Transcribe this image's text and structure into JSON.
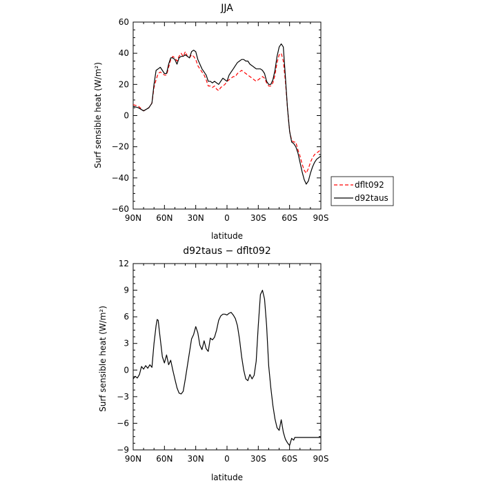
{
  "chart_data": [
    {
      "type": "line",
      "title": "JJA",
      "xlabel": "latitude",
      "ylabel": "Surf sensible heat (W/m²)",
      "ylim": [
        -60,
        60
      ],
      "xlim": [
        -90,
        90
      ],
      "x_tick_values": [
        -90,
        -60,
        -30,
        0,
        30,
        60,
        90
      ],
      "x_tick_labels": [
        "90N",
        "60N",
        "30N",
        "0",
        "30S",
        "60S",
        "90S"
      ],
      "y_tick_values": [
        -60,
        -40,
        -20,
        0,
        20,
        40,
        60
      ],
      "y_tick_labels": [
        "−60",
        "−40",
        "−20",
        "0",
        "20",
        "40",
        "60"
      ],
      "legend_placement": "right",
      "series": [
        {
          "name": "dflt092",
          "color": "#ff0000",
          "dashed": true,
          "x": [
            -90,
            -85,
            -80,
            -75,
            -72,
            -70,
            -68,
            -66,
            -64,
            -62,
            -60,
            -58,
            -56,
            -54,
            -52,
            -50,
            -48,
            -46,
            -44,
            -42,
            -40,
            -38,
            -36,
            -34,
            -32,
            -30,
            -28,
            -26,
            -24,
            -22,
            -20,
            -18,
            -16,
            -14,
            -12,
            -10,
            -8,
            -6,
            -4,
            -2,
            0,
            2,
            4,
            6,
            8,
            10,
            12,
            14,
            16,
            18,
            20,
            22,
            24,
            26,
            28,
            30,
            32,
            34,
            36,
            38,
            40,
            42,
            44,
            46,
            48,
            50,
            52,
            54,
            56,
            58,
            60,
            62,
            64,
            66,
            68,
            70,
            72,
            74,
            76,
            78,
            80,
            82,
            84,
            86,
            88,
            90
          ],
          "values": [
            7,
            6,
            3,
            5,
            8,
            18,
            23,
            27,
            28,
            27,
            26,
            26,
            31,
            36,
            38,
            37,
            35,
            38,
            40,
            38,
            41,
            38,
            37,
            39,
            38,
            36,
            32,
            30,
            28,
            26,
            23,
            19,
            19,
            18,
            19,
            17,
            16,
            18,
            19,
            20,
            22,
            23,
            24,
            25,
            25,
            27,
            28,
            29,
            28,
            27,
            26,
            25,
            24,
            23,
            22,
            23,
            24,
            25,
            24,
            21,
            19,
            19,
            21,
            26,
            34,
            39,
            40,
            35,
            22,
            5,
            -10,
            -16,
            -17,
            -17,
            -22,
            -26,
            -31,
            -35,
            -37,
            -34,
            -30,
            -27,
            -25,
            -24,
            -23,
            -22
          ]
        },
        {
          "name": "d92taus",
          "color": "#000000",
          "dashed": false,
          "x": [
            -90,
            -85,
            -80,
            -75,
            -72,
            -70,
            -68,
            -66,
            -64,
            -62,
            -60,
            -58,
            -56,
            -54,
            -52,
            -50,
            -48,
            -46,
            -44,
            -42,
            -40,
            -38,
            -36,
            -34,
            -32,
            -30,
            -28,
            -26,
            -24,
            -22,
            -20,
            -18,
            -16,
            -14,
            -12,
            -10,
            -8,
            -6,
            -4,
            -2,
            0,
            2,
            4,
            6,
            8,
            10,
            12,
            14,
            16,
            18,
            20,
            22,
            24,
            26,
            28,
            30,
            32,
            34,
            36,
            38,
            40,
            42,
            44,
            46,
            48,
            50,
            52,
            54,
            56,
            58,
            60,
            62,
            64,
            66,
            68,
            70,
            72,
            74,
            76,
            78,
            80,
            82,
            84,
            86,
            88,
            90
          ],
          "values": [
            6,
            5,
            3,
            5,
            8,
            20,
            29,
            30,
            31,
            29,
            27,
            27,
            33,
            37,
            37,
            36,
            33,
            37,
            38,
            38,
            39,
            38,
            37,
            41,
            42,
            41,
            36,
            33,
            30,
            28,
            26,
            22,
            22,
            21,
            22,
            21,
            20,
            22,
            24,
            23,
            22,
            26,
            28,
            30,
            32,
            34,
            35,
            36,
            36,
            35,
            35,
            33,
            32,
            31,
            30,
            30,
            30,
            29,
            27,
            22,
            20,
            20,
            23,
            29,
            38,
            44,
            46,
            44,
            25,
            5,
            -10,
            -17,
            -18,
            -20,
            -24,
            -30,
            -36,
            -41,
            -44,
            -42,
            -37,
            -33,
            -30,
            -28,
            -27,
            -26
          ]
        }
      ]
    },
    {
      "type": "line",
      "title": "d92taus − dflt092",
      "xlabel": "latitude",
      "ylabel": "Surf sensible heat (W/m²)",
      "ylim": [
        -9,
        12
      ],
      "xlim": [
        -90,
        90
      ],
      "x_tick_values": [
        -90,
        -60,
        -30,
        0,
        30,
        60,
        90
      ],
      "x_tick_labels": [
        "90N",
        "60N",
        "30N",
        "0",
        "30S",
        "60S",
        "90S"
      ],
      "y_tick_values": [
        -9,
        -6,
        -3,
        0,
        3,
        6,
        9,
        12
      ],
      "y_tick_labels": [
        "−9",
        "−6",
        "−3",
        "0",
        "3",
        "6",
        "9",
        "12"
      ],
      "series": [
        {
          "name": "",
          "color": "#000000",
          "dashed": false,
          "x": [
            -90,
            -88,
            -86,
            -84,
            -82,
            -80,
            -78,
            -76,
            -74,
            -72,
            -70,
            -69,
            -68,
            -67,
            -66,
            -65,
            -64,
            -62,
            -60,
            -58,
            -56,
            -54,
            -52,
            -50,
            -48,
            -46,
            -44,
            -42,
            -40,
            -38,
            -36,
            -34,
            -32,
            -30,
            -28,
            -26,
            -24,
            -22,
            -20,
            -18,
            -16,
            -14,
            -12,
            -10,
            -8,
            -6,
            -4,
            -2,
            0,
            2,
            4,
            6,
            8,
            10,
            12,
            14,
            16,
            18,
            20,
            22,
            24,
            26,
            28,
            30,
            32,
            34,
            36,
            38,
            40,
            42,
            44,
            46,
            48,
            50,
            52,
            54,
            56,
            58,
            60,
            62,
            64,
            65,
            66,
            67,
            68,
            70,
            72,
            74,
            76,
            78,
            80,
            82,
            84,
            86,
            88,
            90
          ],
          "values": [
            -1.0,
            -0.7,
            -0.9,
            -0.5,
            0.4,
            0.1,
            0.5,
            0.2,
            0.6,
            0.3,
            3.0,
            4.0,
            5.0,
            5.7,
            5.6,
            4.5,
            3.5,
            1.5,
            0.8,
            1.7,
            0.6,
            1.1,
            0.0,
            -1.0,
            -2.0,
            -2.6,
            -2.7,
            -2.4,
            -1.0,
            0.5,
            2.0,
            3.5,
            4.0,
            4.9,
            4.2,
            2.8,
            2.3,
            3.3,
            2.4,
            2.1,
            3.6,
            3.4,
            3.7,
            4.5,
            5.6,
            6.1,
            6.3,
            6.3,
            6.2,
            6.4,
            6.5,
            6.2,
            5.8,
            5.0,
            3.5,
            1.5,
            0.0,
            -1.0,
            -1.2,
            -0.5,
            -1.0,
            -0.6,
            1.0,
            5.0,
            8.5,
            9.0,
            8.0,
            5.0,
            0.5,
            -2.0,
            -4.0,
            -5.5,
            -6.5,
            -6.8,
            -5.6,
            -7.0,
            -7.8,
            -8.2,
            -8.5,
            -7.7,
            -7.9,
            -7.6,
            -7.6,
            -7.6,
            -7.6,
            -7.6,
            -7.6,
            -7.6,
            -7.6,
            -7.6,
            -7.6,
            -7.6,
            -7.6,
            -7.6,
            -7.6,
            -7.6
          ]
        }
      ]
    }
  ]
}
